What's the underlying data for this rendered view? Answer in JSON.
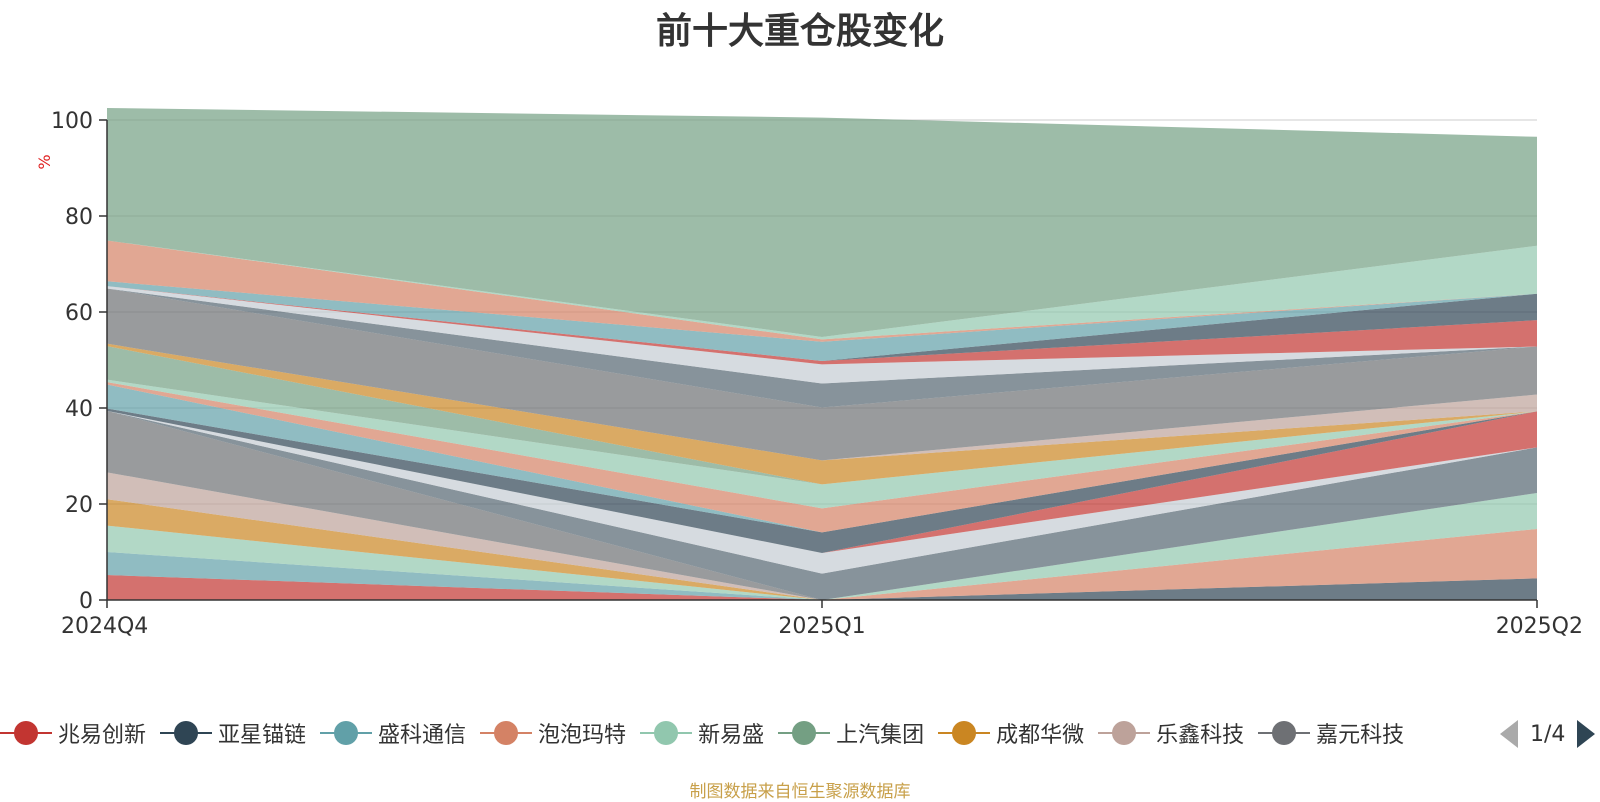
{
  "title": "前十大重仓股变化",
  "footer": "制图数据来自恒生聚源数据库",
  "pager": {
    "text": "1/4"
  },
  "chart_data": {
    "type": "area",
    "stacked": true,
    "unit": "%",
    "x": [
      "2024Q4",
      "2025Q1",
      "2025Q2"
    ],
    "ylim": [
      0,
      100
    ],
    "yticks": [
      0,
      20,
      40,
      60,
      80,
      100
    ],
    "grid": true,
    "legend_position": "bottom",
    "series": [
      {
        "name": "兆易创新",
        "color": "#c23531",
        "values": [
          5.2,
          0.0,
          0.0
        ]
      },
      {
        "name": "亚星锚链",
        "color": "#2f4554",
        "values": [
          0.0,
          0.0,
          4.5
        ]
      },
      {
        "name": "盛科通信",
        "color": "#61a0a8",
        "values": [
          4.8,
          0.0,
          0.0
        ]
      },
      {
        "name": "泡泡玛特",
        "color": "#d48265",
        "values": [
          0.0,
          0.0,
          10.3
        ]
      },
      {
        "name": "新易盛",
        "color": "#91c7ae",
        "values": [
          5.5,
          0.0,
          7.5
        ]
      },
      {
        "name": "上汽集团",
        "color": "#749f83",
        "values": [
          0.0,
          0.0,
          0.0
        ]
      },
      {
        "name": "成都华微",
        "color": "#ca8622",
        "values": [
          5.5,
          0.0,
          0.0
        ]
      },
      {
        "name": "乐鑫科技",
        "color": "#bda29a",
        "values": [
          5.6,
          0.0,
          0.0
        ]
      },
      {
        "name": "嘉元科技",
        "color": "#6e7074",
        "values": [
          12.8,
          0.0,
          0.0
        ]
      },
      {
        "name": "",
        "color": "#546570",
        "values": [
          0.0,
          5.5,
          9.5
        ]
      },
      {
        "name": "",
        "color": "#c4ccd3",
        "values": [
          0.0,
          4.3,
          0.0
        ]
      },
      {
        "name": "",
        "color": "#c23531",
        "values": [
          0.0,
          0.0,
          7.5
        ]
      },
      {
        "name": "",
        "color": "#2f4554",
        "values": [
          0.5,
          4.3,
          0.0
        ]
      },
      {
        "name": "",
        "color": "#61a0a8",
        "values": [
          5.0,
          0.0,
          0.0
        ]
      },
      {
        "name": "",
        "color": "#d48265",
        "values": [
          0.5,
          5.0,
          0.0
        ]
      },
      {
        "name": "",
        "color": "#91c7ae",
        "values": [
          0.5,
          5.0,
          0.0
        ]
      },
      {
        "name": "",
        "color": "#749f83",
        "values": [
          7.0,
          0.0,
          0.0
        ]
      },
      {
        "name": "",
        "color": "#ca8622",
        "values": [
          0.5,
          5.0,
          0.0
        ]
      },
      {
        "name": "",
        "color": "#bda29a",
        "values": [
          0.0,
          0.0,
          3.5
        ]
      },
      {
        "name": "",
        "color": "#6e7074",
        "values": [
          11.5,
          11.0,
          10.0
        ]
      },
      {
        "name": "",
        "color": "#546570",
        "values": [
          0.0,
          5.0,
          0.0
        ]
      },
      {
        "name": "",
        "color": "#c4ccd3",
        "values": [
          0.5,
          4.0,
          0.0
        ]
      },
      {
        "name": "",
        "color": "#c23531",
        "values": [
          0.0,
          0.7,
          5.5
        ]
      },
      {
        "name": "",
        "color": "#2f4554",
        "values": [
          0.0,
          0.0,
          5.5
        ]
      },
      {
        "name": "",
        "color": "#61a0a8",
        "values": [
          1.0,
          4.0,
          0.0
        ]
      },
      {
        "name": "",
        "color": "#d48265",
        "values": [
          8.5,
          0.5,
          0.0
        ]
      },
      {
        "name": "",
        "color": "#91c7ae",
        "values": [
          0.0,
          0.5,
          10.0
        ]
      },
      {
        "name": "",
        "color": "#749f83",
        "values": [
          27.6,
          45.7,
          22.7
        ]
      }
    ]
  }
}
